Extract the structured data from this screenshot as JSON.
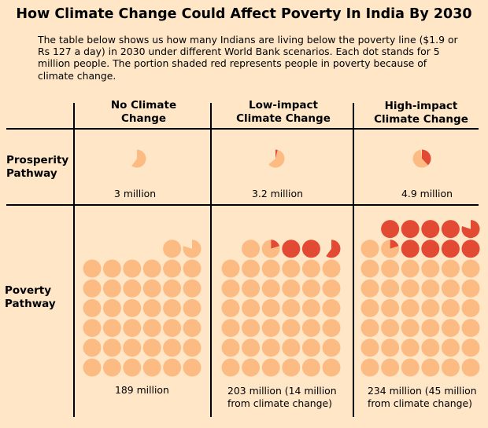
{
  "title": "How Climate Change Could Affect Poverty In India By 2030",
  "subtitle": "The table below shows us how many Indians are living below the poverty line ($1.9 or Rs 127 a day) in 2030 under different World Bank scenarios. Each dot stands for 5 million people. The portion shaded red represents people in poverty because of climate change.",
  "columns": [
    {
      "line1": "No Climate",
      "line2": "Change"
    },
    {
      "line1": "Low-impact",
      "line2": "Climate Change"
    },
    {
      "line1": "High-impact",
      "line2": "Climate Change"
    }
  ],
  "rows": [
    {
      "line1": "Prosperity",
      "line2": "Pathway"
    },
    {
      "line1": "Poverty",
      "line2": "Pathway"
    }
  ],
  "captions": {
    "prosperity_none": "3 million",
    "prosperity_low": "3.2 million",
    "prosperity_high": "4.9 million",
    "poverty_none": "189 million",
    "poverty_low_1": "203 million (14 million",
    "poverty_low_2": "from climate change)",
    "poverty_high_1": "234 million (45 million",
    "poverty_high_2": "from climate change)"
  },
  "colors": {
    "background": "#fee6c7",
    "dot_base": "#fdbb84",
    "dot_climate": "#e34a33"
  },
  "chart_data": {
    "type": "table",
    "unit_per_dot_million": 5,
    "cells": [
      {
        "row": "Prosperity Pathway",
        "column": "No Climate Change",
        "total_million": 3,
        "climate_million": 0
      },
      {
        "row": "Prosperity Pathway",
        "column": "Low-impact Climate Change",
        "total_million": 3.2,
        "climate_million": 0.2
      },
      {
        "row": "Prosperity Pathway",
        "column": "High-impact Climate Change",
        "total_million": 4.9,
        "climate_million": 1.9
      },
      {
        "row": "Poverty Pathway",
        "column": "No Climate Change",
        "total_million": 189,
        "climate_million": 0
      },
      {
        "row": "Poverty Pathway",
        "column": "Low-impact Climate Change",
        "total_million": 203,
        "climate_million": 14
      },
      {
        "row": "Poverty Pathway",
        "column": "High-impact Climate Change",
        "total_million": 234,
        "climate_million": 45
      }
    ]
  }
}
